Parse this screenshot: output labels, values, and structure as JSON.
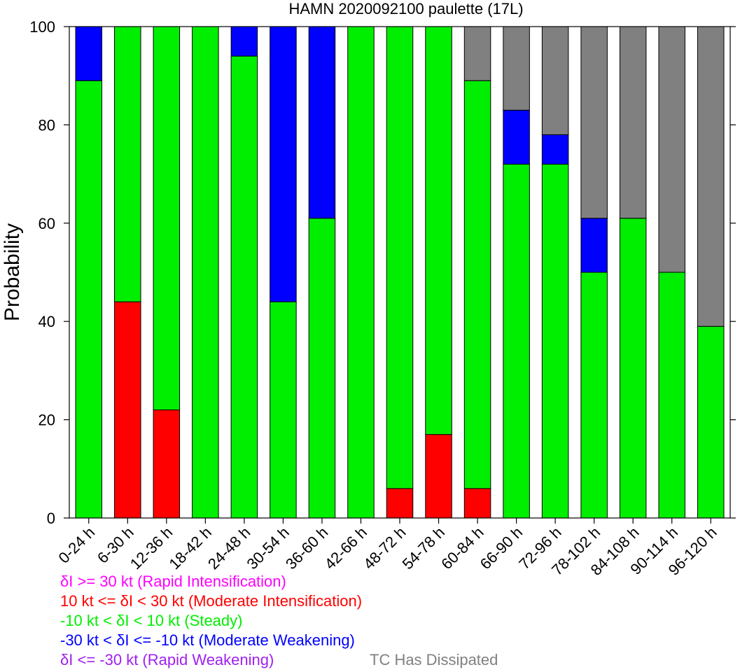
{
  "chart_data": {
    "type": "bar",
    "stacked": true,
    "title": "HAMN 2020092100 paulette (17L)",
    "ylabel": "Probability",
    "xlabel": "",
    "ylim": [
      0,
      100
    ],
    "yticks": [
      0,
      20,
      40,
      60,
      80,
      100
    ],
    "grid": false,
    "categories": [
      "0-24 h",
      "6-30 h",
      "12-36 h",
      "18-42 h",
      "24-48 h",
      "30-54 h",
      "36-60 h",
      "42-66 h",
      "48-72 h",
      "54-78 h",
      "60-84 h",
      "66-90 h",
      "72-96 h",
      "78-102 h",
      "84-108 h",
      "90-114 h",
      "96-120 h"
    ],
    "series": [
      {
        "name": "Rapid Intensification",
        "color": "#ff00ff",
        "values": [
          0,
          0,
          0,
          0,
          0,
          0,
          0,
          0,
          0,
          0,
          0,
          0,
          0,
          0,
          0,
          0,
          0
        ]
      },
      {
        "name": "Moderate Intensification",
        "color": "#ff0000",
        "values": [
          0,
          44,
          22,
          0,
          0,
          0,
          0,
          0,
          6,
          17,
          6,
          0,
          0,
          0,
          0,
          0,
          0
        ]
      },
      {
        "name": "Steady",
        "color": "#00ee00",
        "values": [
          89,
          56,
          78,
          100,
          94,
          44,
          61,
          100,
          94,
          83,
          83,
          72,
          72,
          50,
          61,
          50,
          39
        ]
      },
      {
        "name": "Moderate Weakening",
        "color": "#0000ff",
        "values": [
          11,
          0,
          0,
          0,
          6,
          56,
          39,
          0,
          0,
          0,
          0,
          11,
          6,
          11,
          0,
          0,
          0
        ]
      },
      {
        "name": "Rapid Weakening",
        "color": "#a020f0",
        "values": [
          0,
          0,
          0,
          0,
          0,
          0,
          0,
          0,
          0,
          0,
          0,
          0,
          0,
          0,
          0,
          0,
          0
        ]
      },
      {
        "name": "TC Has Dissipated",
        "color": "#808080",
        "values": [
          0,
          0,
          0,
          0,
          0,
          0,
          0,
          0,
          0,
          0,
          11,
          17,
          22,
          39,
          39,
          50,
          61
        ]
      }
    ],
    "legend": {
      "placement": "bottom",
      "lines": [
        {
          "text": "δI >= 30 kt (Rapid Intensification)",
          "color": "#ff00ff"
        },
        {
          "text": "10 kt <= δI < 30 kt (Moderate Intensification)",
          "color": "#ff0000"
        },
        {
          "text": "-10 kt < δI < 10 kt (Steady)",
          "color": "#00ee00"
        },
        {
          "text": "-30 kt < δI <= -10 kt (Moderate Weakening)",
          "color": "#0000ff"
        },
        {
          "text": "δI <= -30 kt (Rapid Weakening)",
          "color": "#a020f0"
        },
        {
          "text": "TC Has Dissipated",
          "color": "#808080"
        }
      ]
    }
  }
}
